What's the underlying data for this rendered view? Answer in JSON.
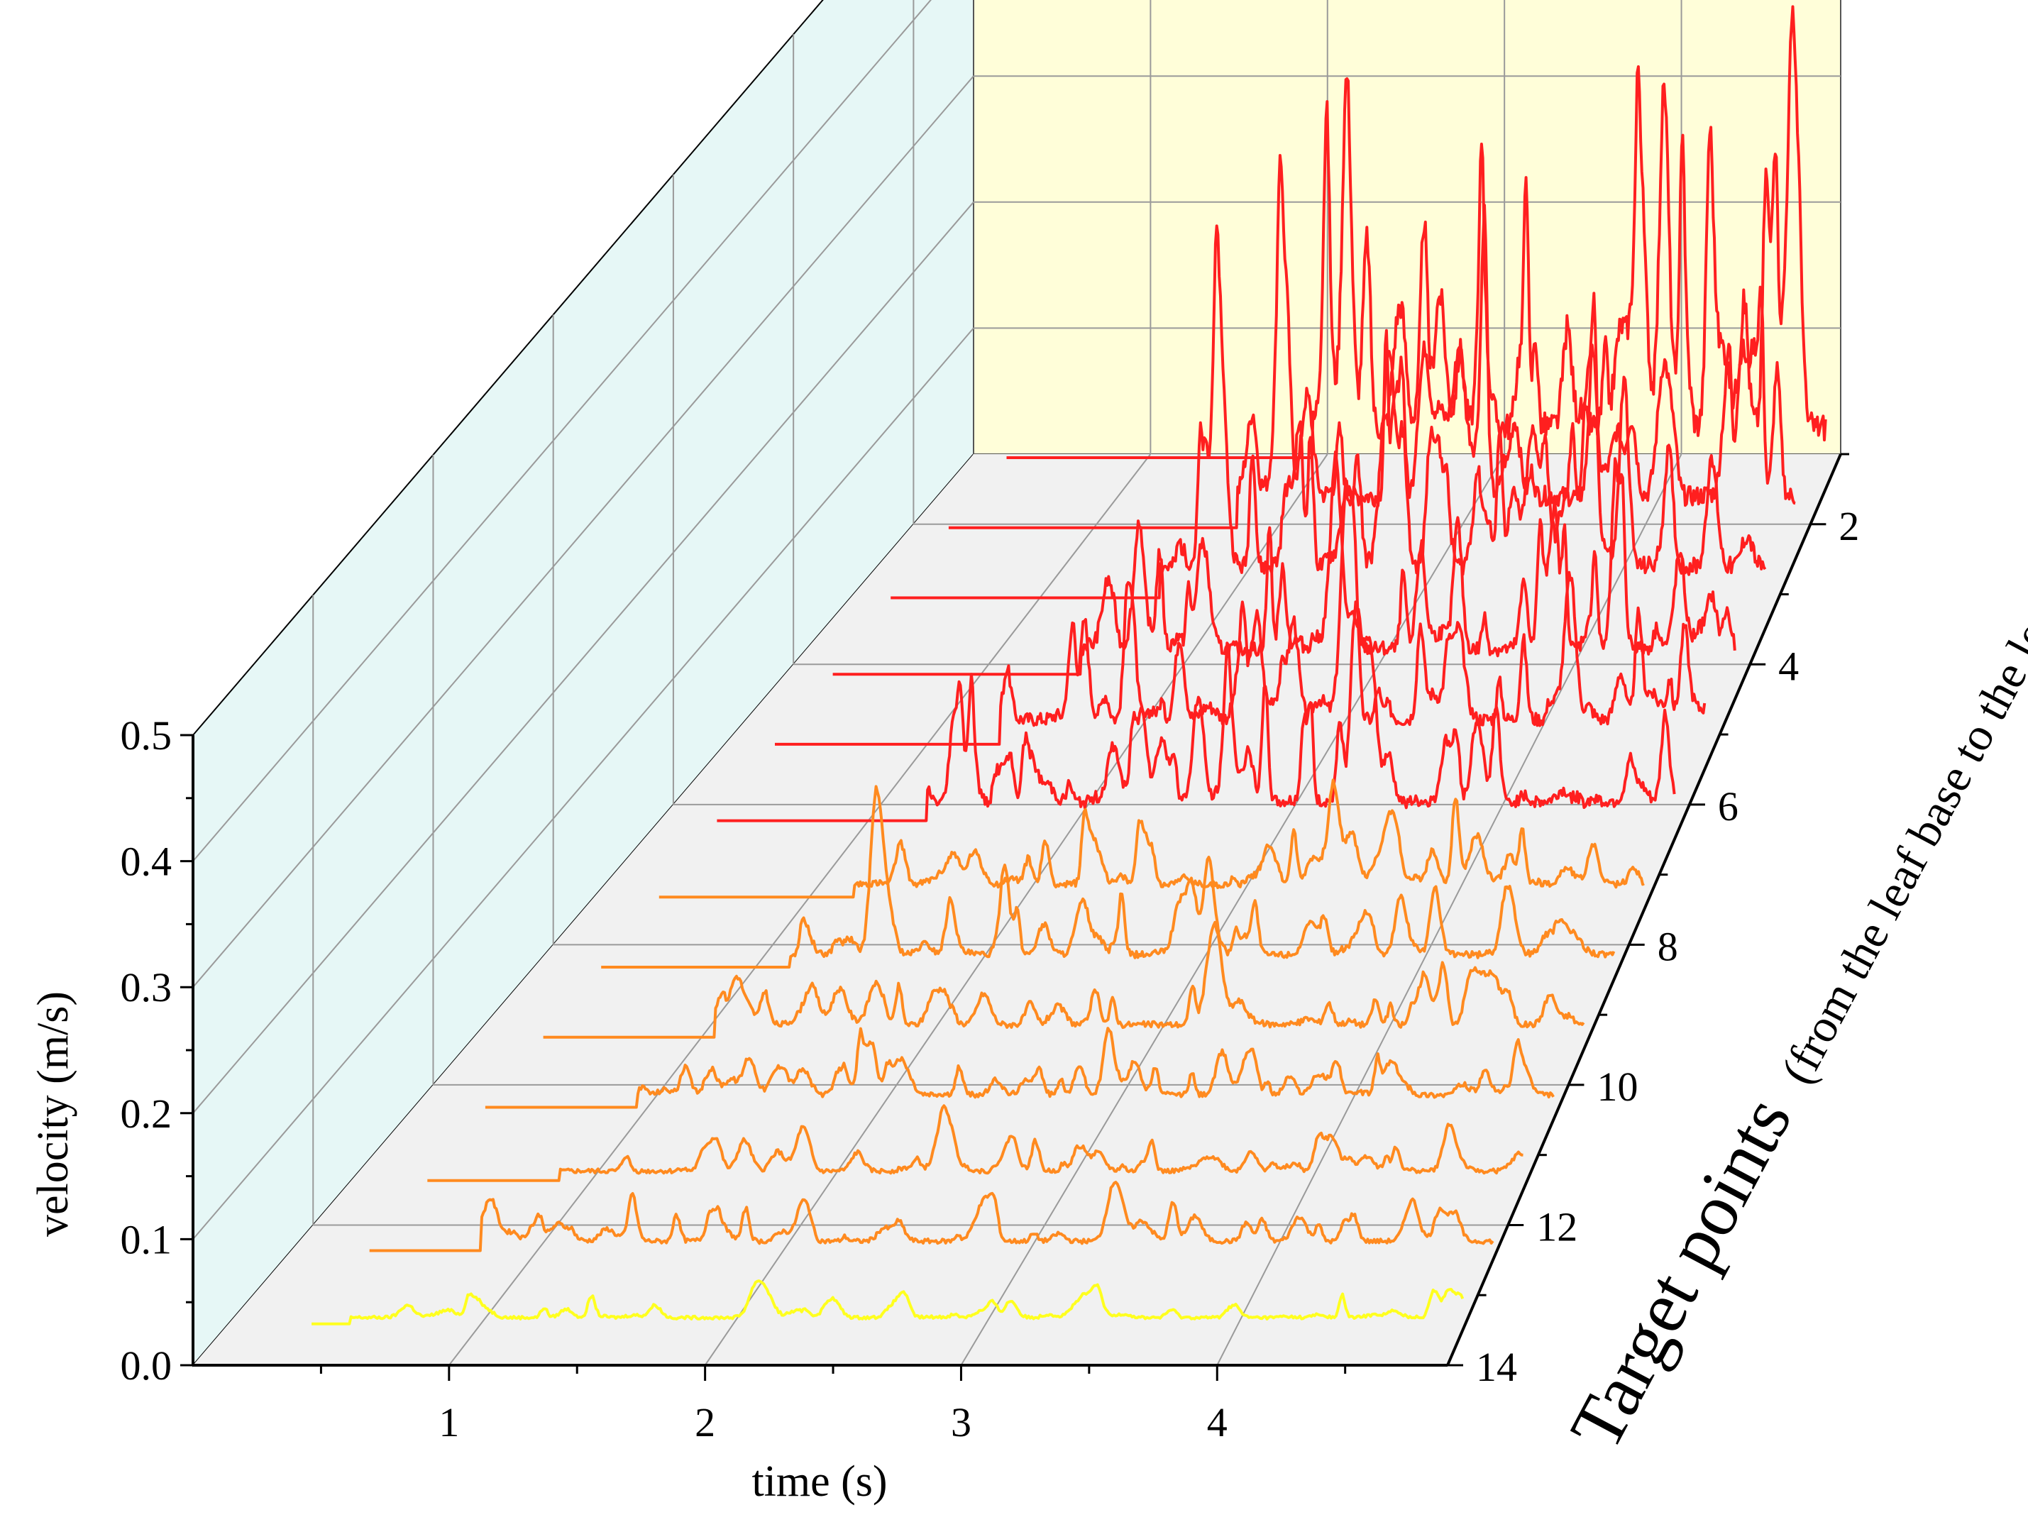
{
  "chart_data": {
    "type": "waterfall-line-3d",
    "xlabel": "time (s)",
    "ylabel": "velocity (m/s)",
    "zlabel_main": "Target points",
    "zlabel_sub": "(from the leaf base to the leaf tip)",
    "x_ticks": [
      "1",
      "2",
      "3",
      "4"
    ],
    "x_range": [
      0,
      4.9
    ],
    "y_ticks": [
      "0.0",
      "0.1",
      "0.2",
      "0.3",
      "0.4",
      "0.5"
    ],
    "y_range": [
      0,
      0.5
    ],
    "z_ticks": [
      "2",
      "4",
      "6",
      "8",
      "10",
      "12",
      "14"
    ],
    "z_range": [
      1,
      14
    ],
    "colors": {
      "back_wall": "#fffed9",
      "side_wall": "#e6f7f6",
      "floor": "#f1f1f1",
      "yellow": "#ffff1f",
      "orange": "#ff8a1f",
      "red": "#ff1f1f"
    },
    "series": [
      {
        "z": 1,
        "color": "red",
        "start": 2.05,
        "base": 0.05,
        "amp": 0.19,
        "seed": 3
      },
      {
        "z": 2,
        "color": "red",
        "start": 1.9,
        "base": 0.05,
        "amp": 0.13,
        "seed": 7
      },
      {
        "z": 3,
        "color": "red",
        "start": 1.75,
        "base": 0.05,
        "amp": 0.12,
        "seed": 11
      },
      {
        "z": 4,
        "color": "red",
        "start": 1.6,
        "base": 0.04,
        "amp": 0.1,
        "seed": 13
      },
      {
        "z": 5,
        "color": "red",
        "start": 1.45,
        "base": 0.04,
        "amp": 0.09,
        "seed": 17
      },
      {
        "z": 6,
        "color": "red",
        "start": 1.35,
        "base": 0.03,
        "amp": 0.08,
        "seed": 19
      },
      {
        "z": 7,
        "color": "orange",
        "start": 1.25,
        "base": 0.02,
        "amp": 0.045,
        "seed": 23
      },
      {
        "z": 8,
        "color": "orange",
        "start": 1.2,
        "base": 0.02,
        "amp": 0.045,
        "seed": 29
      },
      {
        "z": 9,
        "color": "orange",
        "start": 1.1,
        "base": 0.02,
        "amp": 0.04,
        "seed": 31
      },
      {
        "z": 10,
        "color": "orange",
        "start": 1.0,
        "base": 0.02,
        "amp": 0.035,
        "seed": 37
      },
      {
        "z": 11,
        "color": "orange",
        "start": 0.9,
        "base": 0.015,
        "amp": 0.03,
        "seed": 41
      },
      {
        "z": 12,
        "color": "orange",
        "start": 0.8,
        "base": 0.015,
        "amp": 0.03,
        "seed": 43
      },
      {
        "z": 13,
        "color": "yellow",
        "start": 0.5,
        "base": 0.01,
        "amp": 0.02,
        "seed": 47
      }
    ]
  }
}
